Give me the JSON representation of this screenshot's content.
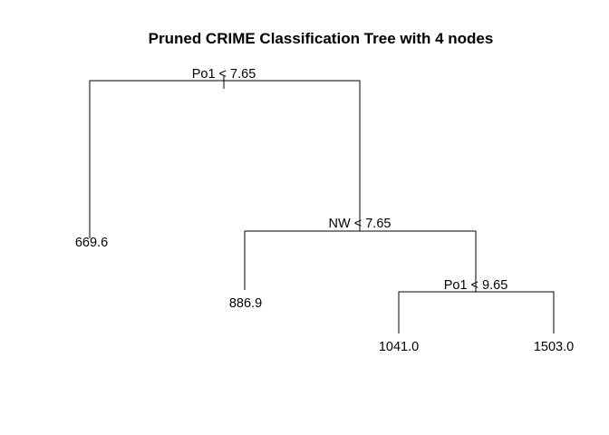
{
  "title": "Pruned CRIME Classification Tree with 4 nodes",
  "tree": {
    "splits": [
      {
        "id": "s1",
        "label": "Po1 < 7.65"
      },
      {
        "id": "s2",
        "label": "NW < 7.65"
      },
      {
        "id": "s3",
        "label": "Po1 < 9.65"
      }
    ],
    "leaves": [
      {
        "id": "l1",
        "label": "669.6"
      },
      {
        "id": "l2",
        "label": "886.9"
      },
      {
        "id": "l3",
        "label": "1041.0"
      },
      {
        "id": "l4",
        "label": "1503.0"
      }
    ]
  }
}
